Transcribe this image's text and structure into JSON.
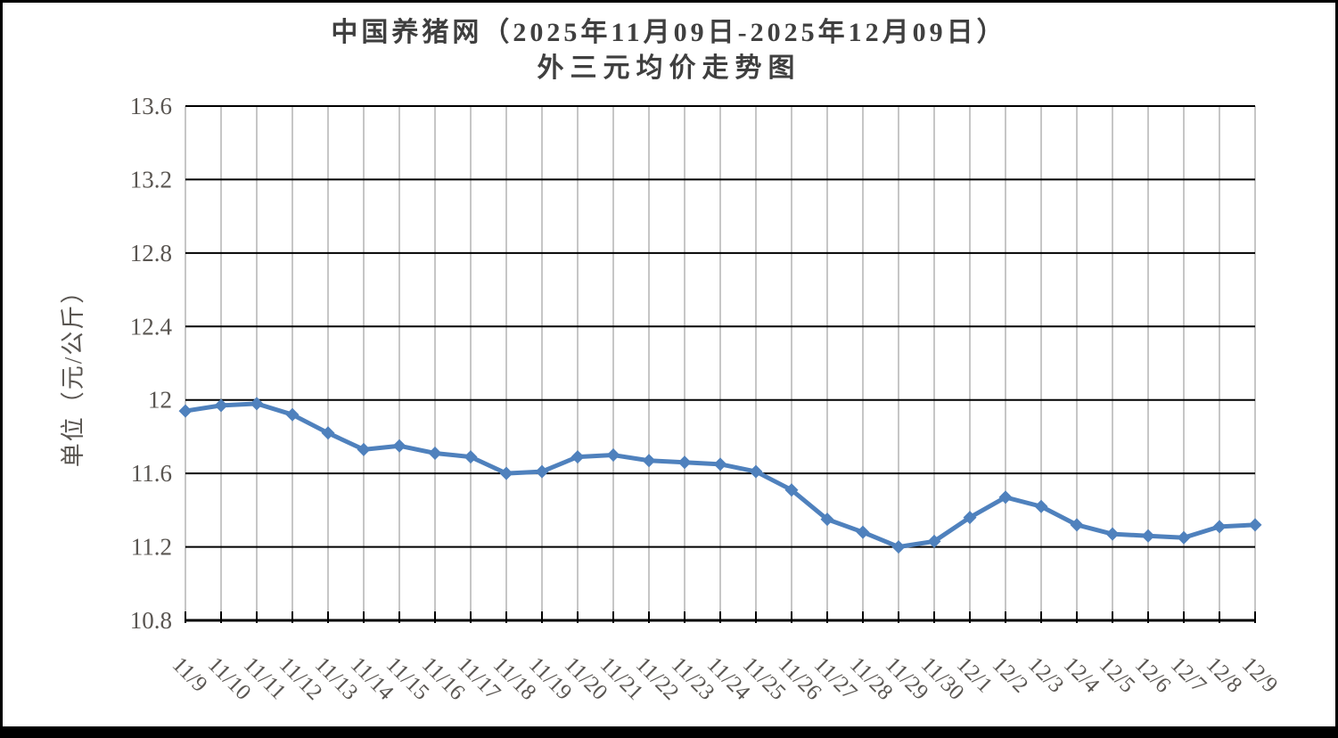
{
  "chart_data": {
    "type": "line",
    "title": "中国养猪网（2025年11月09日-2025年12月09日）外三元均价走势图",
    "title_line1": "中国养猪网（2025年11月09日-2025年12月09日）",
    "title_line2": "外三元均价走势图",
    "ylabel": "单位（元/公斤）",
    "xlabel": "",
    "series_name": "外三元均价",
    "categories": [
      "11/9",
      "11/10",
      "11/11",
      "11/12",
      "11/13",
      "11/14",
      "11/15",
      "11/16",
      "11/17",
      "11/18",
      "11/19",
      "11/20",
      "11/21",
      "11/22",
      "11/23",
      "11/24",
      "11/25",
      "11/26",
      "11/27",
      "11/28",
      "11/29",
      "11/30",
      "12/1",
      "12/2",
      "12/3",
      "12/4",
      "12/5",
      "12/6",
      "12/7",
      "12/8",
      "12/9"
    ],
    "values": [
      11.94,
      11.97,
      11.98,
      11.92,
      11.82,
      11.73,
      11.75,
      11.71,
      11.69,
      11.6,
      11.61,
      11.69,
      11.7,
      11.67,
      11.66,
      11.65,
      11.61,
      11.51,
      11.35,
      11.28,
      11.2,
      11.23,
      11.36,
      11.47,
      11.42,
      11.32,
      11.27,
      11.26,
      11.25,
      11.31,
      11.32
    ],
    "ylim": [
      10.8,
      13.6
    ],
    "ytick_step": 0.4,
    "ytick_labels": [
      "13.6",
      "13.2",
      "12.8",
      "12.4",
      "12",
      "11.6",
      "11.2",
      "10.8"
    ],
    "legend_position": "none",
    "grid": {
      "horizontal": true,
      "vertical": true
    },
    "marker": "diamond",
    "colors": {
      "line": "#4F81BD",
      "marker": "#4F81BD",
      "hgrid": "#000000",
      "vgrid": "#c6c6c6",
      "axis": "#000000",
      "labels": "#595551",
      "title": "#3f3f3f",
      "background": "#ffffff"
    }
  }
}
